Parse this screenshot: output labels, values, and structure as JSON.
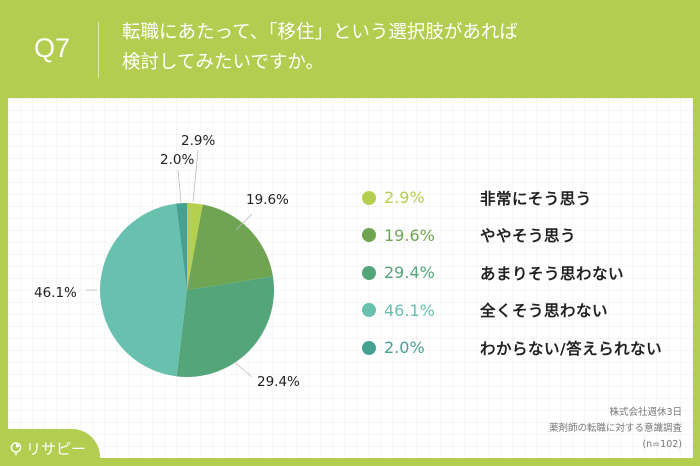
{
  "header": {
    "question_number": "Q7",
    "title_line1": "転職にあたって、「移住」という選択肢があれば",
    "title_line2": "検討してみたいですか。"
  },
  "colors": {
    "background": "#b2cd4f",
    "slice1": "#b5cf4f",
    "slice2": "#6fa552",
    "slice3": "#55a57a",
    "slice4": "#68c1ae",
    "slice5": "#45a291"
  },
  "chart_data": {
    "type": "pie",
    "title": "転職にあたって、「移住」という選択肢があれば検討してみたいですか。",
    "categories": [
      "非常にそう思う",
      "ややそう思う",
      "あまりそう思わない",
      "全くそう思わない",
      "わからない/答えられない"
    ],
    "values": [
      2.9,
      19.6,
      29.4,
      46.1,
      2.0
    ],
    "labels": [
      "2.9%",
      "19.6%",
      "29.4%",
      "46.1%",
      "2.0%"
    ],
    "colors": [
      "#b5cf4f",
      "#6fa552",
      "#55a57a",
      "#68c1ae",
      "#45a291"
    ],
    "start_angle": "12 o'clock, clockwise",
    "legend_position": "right"
  },
  "legend": [
    {
      "value": "2.9%",
      "label": "非常にそう思う",
      "color": "#b5cf4f"
    },
    {
      "value": "19.6%",
      "label": "ややそう思う",
      "color": "#6fa552"
    },
    {
      "value": "29.4%",
      "label": "あまりそう思わない",
      "color": "#55a57a"
    },
    {
      "value": "46.1%",
      "label": "全くそう思わない",
      "color": "#68c1ae"
    },
    {
      "value": "2.0%",
      "label": "わからない/答えられない",
      "color": "#45a291"
    }
  ],
  "source": {
    "line1": "株式会社週休3日",
    "line2": "薬剤師の転職に対する意識調査",
    "line3": "(n=102)"
  },
  "logo": {
    "text": "リサピー"
  }
}
